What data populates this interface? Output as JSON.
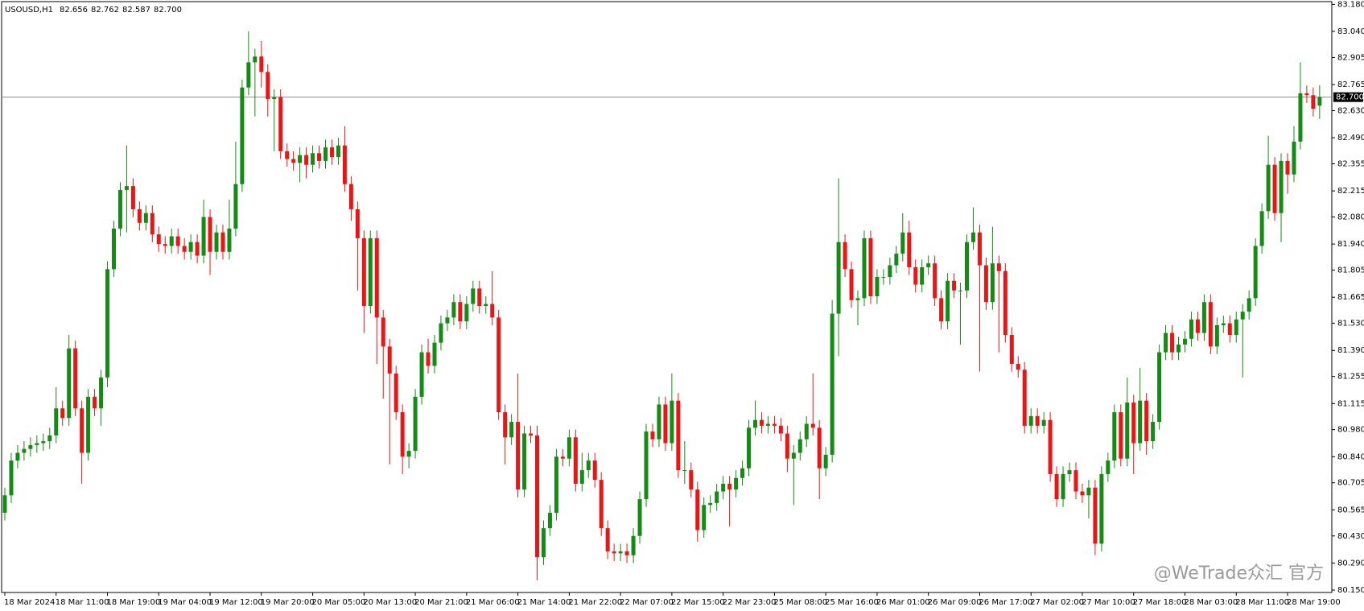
{
  "chart_data": {
    "type": "candlestick",
    "symbol": "USOUSD,H1",
    "header_values": [
      82.656,
      82.762,
      82.587,
      {
        "value": 82.7,
        "label": "82.700"
      }
    ],
    "watermark": "@WeTrade众汇 官方",
    "up_color": "#128c12",
    "down_color": "#ee1414",
    "current_price": {
      "value": 82.7,
      "label": "82.700"
    },
    "ylim": [
      80.15,
      83.18
    ],
    "yticks": [
      {
        "value": 83.18,
        "label": "83.180"
      },
      {
        "value": 83.04,
        "label": "83.040"
      },
      {
        "value": 82.905,
        "label": "82.905"
      },
      {
        "value": 82.765,
        "label": "82.765"
      },
      {
        "value": 82.63,
        "label": "82.630"
      },
      {
        "value": 82.49,
        "label": "82.490"
      },
      {
        "value": 82.355,
        "label": "82.355"
      },
      {
        "value": 82.215,
        "label": "82.215"
      },
      {
        "value": 82.08,
        "label": "82.080"
      },
      {
        "value": 81.94,
        "label": "81.940"
      },
      {
        "value": 81.805,
        "label": "81.805"
      },
      {
        "value": 81.665,
        "label": "81.665"
      },
      {
        "value": 81.53,
        "label": "81.530"
      },
      {
        "value": 81.39,
        "label": "81.390"
      },
      {
        "value": 81.255,
        "label": "81.255"
      },
      {
        "value": 81.115,
        "label": "81.115"
      },
      {
        "value": 80.98,
        "label": "80.980"
      },
      {
        "value": 80.84,
        "label": "80.840"
      },
      {
        "value": 80.705,
        "label": "80.705"
      },
      {
        "value": 80.565,
        "label": "80.565"
      },
      {
        "value": 80.43,
        "label": "80.430"
      },
      {
        "value": 80.29,
        "label": "80.290"
      },
      {
        "value": 80.15,
        "label": "80.150"
      }
    ],
    "xticks": [
      {
        "value": 0,
        "label": "18 Mar 2024"
      },
      {
        "value": 8,
        "label": "18 Mar 11:00"
      },
      {
        "value": 16,
        "label": "18 Mar 19:00"
      },
      {
        "value": 24,
        "label": "19 Mar 04:00"
      },
      {
        "value": 32,
        "label": "19 Mar 12:00"
      },
      {
        "value": 40,
        "label": "19 Mar 20:00"
      },
      {
        "value": 48,
        "label": "20 Mar 05:00"
      },
      {
        "value": 56,
        "label": "20 Mar 13:00"
      },
      {
        "value": 64,
        "label": "20 Mar 21:00"
      },
      {
        "value": 72,
        "label": "21 Mar 06:00"
      },
      {
        "value": 80,
        "label": "21 Mar 14:00"
      },
      {
        "value": 88,
        "label": "21 Mar 22:00"
      },
      {
        "value": 96,
        "label": "22 Mar 07:00"
      },
      {
        "value": 104,
        "label": "22 Mar 15:00"
      },
      {
        "value": 112,
        "label": "22 Mar 23:00"
      },
      {
        "value": 120,
        "label": "25 Mar 08:00"
      },
      {
        "value": 128,
        "label": "25 Mar 16:00"
      },
      {
        "value": 136,
        "label": "26 Mar 01:00"
      },
      {
        "value": 144,
        "label": "26 Mar 09:00"
      },
      {
        "value": 152,
        "label": "26 Mar 17:00"
      },
      {
        "value": 160,
        "label": "27 Mar 02:00"
      },
      {
        "value": 168,
        "label": "27 Mar 10:00"
      },
      {
        "value": 176,
        "label": "27 Mar 18:00"
      },
      {
        "value": 184,
        "label": "28 Mar 03:00"
      },
      {
        "value": 192,
        "label": "28 Mar 11:00"
      },
      {
        "value": 200,
        "label": "28 Mar 19:00"
      }
    ],
    "open": [
      80.55,
      80.64,
      80.82,
      80.86,
      80.88,
      80.9,
      80.91,
      80.92,
      80.95,
      81.09,
      81.04,
      81.4,
      81.09,
      80.86,
      81.15,
      81.09,
      81.25,
      81.81,
      82.02,
      82.22,
      82.24,
      82.12,
      82.05,
      82.1,
      81.99,
      81.94,
      81.93,
      81.98,
      81.93,
      81.9,
      81.95,
      81.88,
      82.08,
      81.9,
      82.0,
      81.9,
      82.02,
      82.25,
      82.75,
      82.88,
      82.91,
      82.83,
      82.69,
      82.7,
      82.42,
      82.38,
      82.36,
      82.4,
      82.35,
      82.41,
      82.37,
      82.44,
      82.39,
      82.45,
      82.25,
      82.12,
      81.97,
      81.62,
      81.97,
      81.56,
      81.41,
      81.27,
      81.07,
      80.84,
      80.87,
      81.15,
      81.38,
      81.31,
      81.43,
      81.53,
      81.56,
      81.64,
      81.54,
      81.63,
      81.71,
      81.62,
      81.63,
      81.56,
      81.07,
      80.94,
      81.02,
      80.67,
      80.96,
      80.95,
      80.32,
      80.47,
      80.55,
      80.84,
      80.83,
      80.94,
      80.7,
      80.77,
      80.82,
      80.72,
      80.47,
      80.35,
      80.34,
      80.35,
      80.33,
      80.43,
      80.62,
      80.97,
      80.93,
      81.11,
      80.91,
      81.13,
      80.77,
      80.77,
      80.67,
      80.46,
      80.59,
      80.6,
      80.66,
      80.7,
      80.67,
      80.73,
      80.78,
      80.99,
      81.03,
      81.0,
      81.01,
      81.0,
      80.96,
      80.83,
      80.86,
      80.93,
      81.01,
      80.99,
      80.78,
      80.85,
      81.58,
      81.95,
      81.81,
      81.65,
      81.66,
      81.97,
      81.67,
      81.77,
      81.77,
      81.83,
      81.89,
      82.0,
      81.82,
      81.73,
      81.82,
      81.84,
      81.66,
      81.54,
      81.75,
      81.7,
      81.7,
      81.95,
      82.0,
      81.83,
      81.64,
      81.84,
      81.8,
      81.47,
      81.32,
      81.29,
      81.0,
      81.05,
      81.0,
      81.03,
      80.75,
      80.62,
      80.75,
      80.77,
      80.66,
      80.64,
      80.68,
      80.39,
      80.75,
      80.82,
      81.07,
      80.83,
      81.12,
      80.91,
      81.13,
      80.92,
      81.02,
      81.38,
      81.48,
      81.38,
      81.42,
      81.45,
      81.55,
      81.48,
      81.64,
      81.41,
      81.52,
      81.53,
      81.47,
      81.55,
      81.59,
      81.66,
      81.93,
      82.11,
      82.35,
      82.1,
      82.37,
      82.3,
      82.47,
      82.72,
      82.71,
      82.656
    ],
    "high": [
      80.68,
      80.86,
      80.9,
      80.92,
      80.94,
      80.95,
      80.96,
      80.99,
      81.2,
      81.13,
      81.47,
      81.44,
      81.13,
      81.19,
      81.19,
      81.29,
      81.85,
      82.06,
      82.26,
      82.45,
      82.28,
      82.16,
      82.14,
      82.14,
      82.03,
      81.98,
      82.02,
      82.02,
      81.97,
      81.99,
      81.99,
      82.17,
      82.12,
      82.04,
      82.04,
      82.17,
      82.47,
      82.79,
      83.04,
      82.95,
      82.99,
      82.87,
      82.74,
      82.74,
      82.46,
      82.42,
      82.44,
      82.44,
      82.45,
      82.45,
      82.48,
      82.48,
      82.49,
      82.55,
      82.29,
      82.16,
      82.01,
      82.01,
      82.01,
      81.6,
      81.45,
      81.31,
      81.11,
      80.91,
      81.19,
      81.42,
      81.45,
      81.47,
      81.57,
      81.6,
      81.68,
      81.68,
      81.67,
      81.75,
      81.75,
      81.67,
      81.8,
      81.6,
      81.11,
      81.06,
      81.27,
      81.0,
      81.0,
      81.0,
      80.51,
      80.59,
      80.88,
      80.88,
      80.98,
      80.98,
      80.86,
      80.86,
      80.86,
      80.76,
      80.51,
      80.39,
      80.39,
      80.39,
      80.47,
      80.66,
      81.01,
      81.01,
      81.15,
      81.15,
      81.27,
      81.17,
      80.92,
      80.81,
      80.71,
      80.63,
      80.64,
      80.7,
      80.74,
      80.74,
      80.77,
      80.82,
      81.03,
      81.13,
      81.07,
      81.05,
      81.05,
      81.04,
      81.0,
      80.9,
      80.97,
      81.05,
      81.27,
      81.03,
      80.89,
      81.65,
      82.28,
      81.99,
      81.85,
      81.7,
      82.01,
      82.01,
      81.81,
      81.81,
      81.87,
      81.93,
      82.1,
      82.06,
      81.86,
      81.86,
      81.88,
      81.88,
      81.7,
      81.79,
      81.79,
      81.74,
      81.99,
      82.13,
      82.04,
      81.87,
      82.03,
      81.88,
      81.84,
      81.51,
      81.36,
      81.33,
      81.09,
      81.09,
      81.07,
      81.07,
      80.79,
      80.79,
      80.81,
      80.81,
      80.7,
      80.72,
      80.72,
      80.79,
      80.86,
      81.11,
      81.11,
      81.25,
      81.16,
      81.3,
      81.17,
      81.06,
      81.42,
      81.52,
      81.52,
      81.46,
      81.49,
      81.59,
      81.59,
      81.68,
      81.68,
      81.56,
      81.57,
      81.57,
      81.59,
      81.63,
      81.7,
      81.97,
      82.15,
      82.5,
      82.39,
      82.41,
      82.41,
      82.55,
      82.88,
      82.76,
      82.75,
      82.762
    ],
    "low": [
      80.51,
      80.6,
      80.78,
      80.82,
      80.84,
      80.86,
      80.87,
      80.88,
      80.91,
      81.0,
      81.0,
      81.05,
      80.7,
      80.82,
      81.05,
      81.0,
      81.2,
      81.77,
      81.98,
      82.0,
      82.08,
      82.01,
      82.01,
      81.95,
      81.9,
      81.89,
      81.89,
      81.89,
      81.86,
      81.86,
      81.84,
      81.84,
      81.78,
      81.86,
      81.86,
      81.86,
      81.98,
      82.21,
      82.71,
      82.6,
      82.75,
      82.6,
      82.42,
      82.38,
      82.34,
      82.32,
      82.26,
      82.28,
      82.31,
      82.33,
      82.33,
      82.35,
      82.35,
      82.21,
      82.06,
      81.7,
      81.48,
      81.58,
      81.32,
      81.14,
      80.8,
      81.03,
      80.75,
      80.78,
      80.83,
      81.11,
      81.27,
      81.27,
      81.39,
      81.49,
      81.52,
      81.5,
      81.5,
      81.59,
      81.58,
      81.58,
      81.52,
      81.03,
      80.8,
      80.9,
      80.63,
      80.63,
      80.91,
      80.2,
      80.28,
      80.43,
      80.51,
      80.79,
      80.79,
      80.66,
      80.66,
      80.73,
      80.68,
      80.43,
      80.31,
      80.3,
      80.3,
      80.29,
      80.29,
      80.39,
      80.58,
      80.89,
      80.89,
      80.87,
      80.87,
      80.73,
      80.7,
      80.63,
      80.4,
      80.42,
      80.55,
      80.56,
      80.62,
      80.48,
      80.63,
      80.69,
      80.74,
      80.95,
      80.96,
      80.96,
      80.96,
      80.92,
      80.76,
      80.59,
      80.82,
      80.89,
      80.95,
      80.62,
      80.74,
      80.81,
      81.36,
      81.77,
      81.61,
      81.52,
      81.62,
      81.63,
      81.63,
      81.73,
      81.73,
      81.79,
      81.85,
      81.78,
      81.69,
      81.69,
      81.78,
      81.62,
      81.5,
      81.5,
      81.66,
      81.42,
      81.66,
      81.91,
      81.28,
      81.6,
      81.6,
      81.38,
      81.43,
      81.28,
      81.25,
      80.96,
      80.96,
      80.96,
      80.96,
      80.71,
      80.58,
      80.58,
      80.71,
      80.62,
      80.6,
      80.52,
      80.33,
      80.35,
      80.71,
      80.78,
      80.79,
      80.79,
      80.75,
      80.87,
      80.85,
      80.88,
      80.98,
      81.34,
      81.34,
      81.34,
      81.38,
      81.41,
      81.44,
      81.44,
      81.37,
      81.37,
      81.48,
      81.43,
      81.43,
      81.25,
      81.55,
      81.62,
      81.89,
      82.07,
      82.06,
      81.95,
      82.2,
      82.26,
      82.43,
      82.67,
      82.6,
      82.587
    ],
    "close": [
      80.64,
      80.82,
      80.86,
      80.88,
      80.9,
      80.91,
      80.92,
      80.95,
      81.09,
      81.04,
      81.4,
      81.09,
      80.86,
      81.15,
      81.09,
      81.25,
      81.81,
      82.02,
      82.22,
      82.24,
      82.12,
      82.05,
      82.1,
      81.99,
      81.94,
      81.93,
      81.98,
      81.93,
      81.9,
      81.95,
      81.88,
      82.08,
      81.9,
      82.0,
      81.9,
      82.02,
      82.25,
      82.75,
      82.88,
      82.91,
      82.83,
      82.69,
      82.7,
      82.42,
      82.38,
      82.36,
      82.4,
      82.35,
      82.41,
      82.37,
      82.44,
      82.39,
      82.45,
      82.25,
      82.12,
      81.97,
      81.62,
      81.97,
      81.56,
      81.41,
      81.27,
      81.07,
      80.84,
      80.87,
      81.15,
      81.38,
      81.31,
      81.43,
      81.53,
      81.56,
      81.64,
      81.54,
      81.63,
      81.71,
      81.62,
      81.63,
      81.56,
      81.07,
      80.94,
      81.02,
      80.67,
      80.96,
      80.95,
      80.32,
      80.47,
      80.55,
      80.84,
      80.83,
      80.94,
      80.7,
      80.77,
      80.82,
      80.72,
      80.47,
      80.35,
      80.34,
      80.35,
      80.33,
      80.43,
      80.62,
      80.97,
      80.93,
      81.11,
      80.91,
      81.13,
      80.77,
      80.77,
      80.67,
      80.46,
      80.59,
      80.6,
      80.66,
      80.7,
      80.67,
      80.73,
      80.78,
      80.99,
      81.03,
      81.0,
      81.01,
      81.0,
      80.96,
      80.83,
      80.86,
      80.93,
      81.01,
      80.99,
      80.78,
      80.85,
      81.58,
      81.95,
      81.81,
      81.65,
      81.66,
      81.97,
      81.67,
      81.77,
      81.77,
      81.83,
      81.89,
      82.0,
      81.82,
      81.73,
      81.82,
      81.84,
      81.66,
      81.54,
      81.75,
      81.7,
      81.7,
      81.95,
      82.0,
      81.83,
      81.64,
      81.84,
      81.8,
      81.47,
      81.32,
      81.29,
      81.0,
      81.05,
      81.0,
      81.03,
      80.75,
      80.62,
      80.75,
      80.77,
      80.66,
      80.64,
      80.68,
      80.39,
      80.75,
      80.82,
      81.07,
      80.83,
      81.12,
      80.91,
      81.13,
      80.92,
      81.02,
      81.38,
      81.48,
      81.38,
      81.42,
      81.45,
      81.55,
      81.48,
      81.64,
      81.41,
      81.52,
      81.53,
      81.47,
      81.55,
      81.59,
      81.66,
      81.93,
      82.11,
      82.35,
      82.1,
      82.37,
      82.3,
      82.47,
      82.72,
      82.71,
      82.64,
      82.7
    ]
  }
}
